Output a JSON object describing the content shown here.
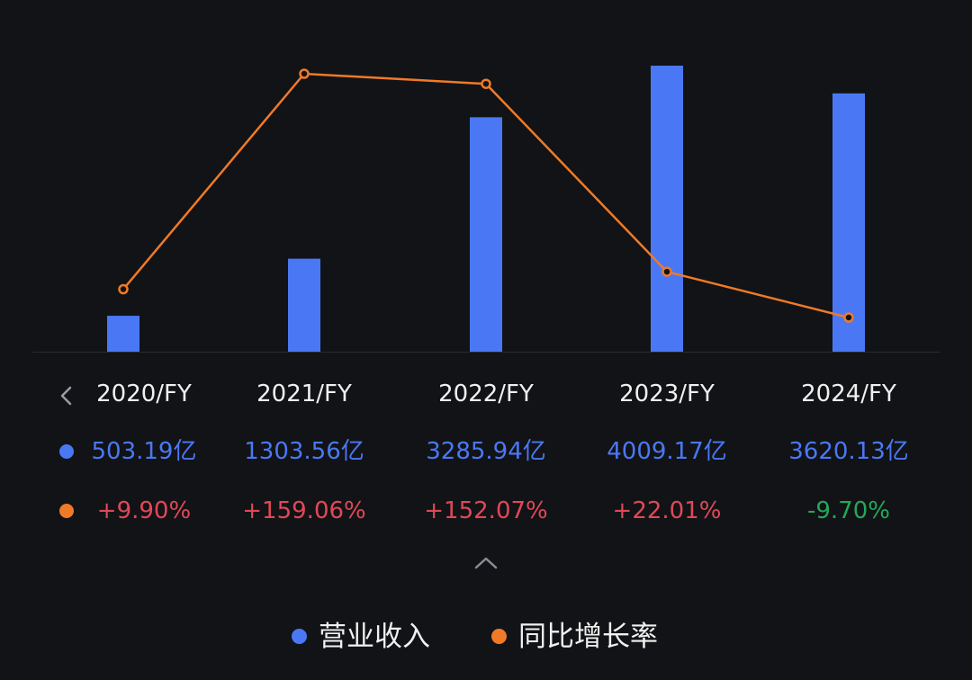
{
  "chart_data": {
    "type": "bar",
    "categories": [
      "2020/FY",
      "2021/FY",
      "2022/FY",
      "2023/FY",
      "2024/FY"
    ],
    "series": [
      {
        "name": "营业收入",
        "kind": "bar",
        "color": "#4a78f5",
        "values": [
          503.19,
          1303.56,
          3285.94,
          4009.17,
          3620.13
        ],
        "labels": [
          "503.19亿",
          "1303.56亿",
          "3285.94亿",
          "4009.17亿",
          "3620.13亿"
        ]
      },
      {
        "name": "同比增长率",
        "kind": "line",
        "color": "#f07a28",
        "values": [
          9.9,
          159.06,
          152.07,
          22.01,
          -9.7
        ],
        "labels": [
          "+9.90%",
          "+159.06%",
          "+152.07%",
          "+22.01%",
          "-9.70%"
        ]
      }
    ],
    "title": "",
    "xlabel": "",
    "ylabel": "",
    "legend_position": "bottom-center"
  },
  "icons": {
    "prev": "chevron-left-icon",
    "collapse": "chevron-up-icon"
  },
  "colors": {
    "background": "#121316",
    "positive": "#e04858",
    "negative": "#22a85a"
  }
}
